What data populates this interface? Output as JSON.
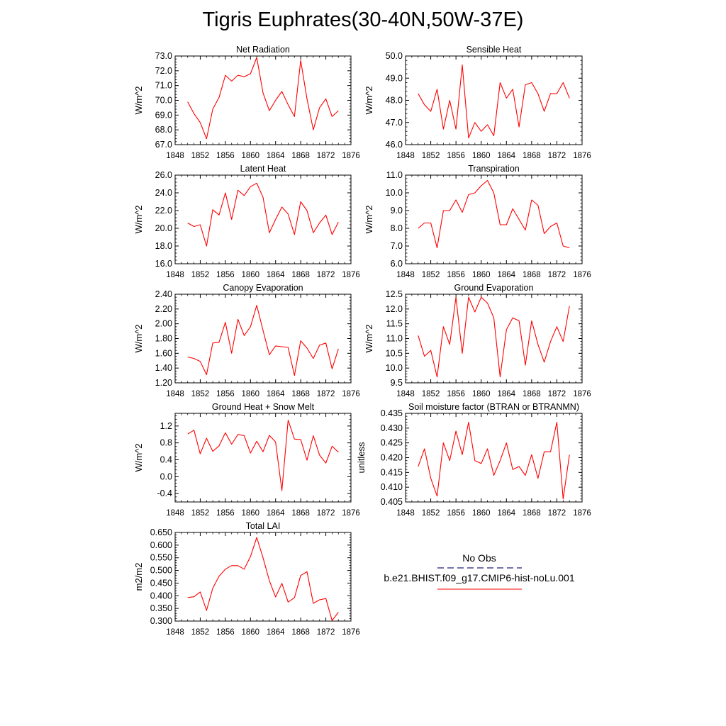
{
  "title": "Tigris Euphrates(30-40N,50W-37E)",
  "legend": {
    "entries": [
      {
        "label": "No Obs",
        "color": "#1f1f7a",
        "style": "dashed"
      },
      {
        "label": "b.e21.BHIST.f09_g17.CMIP6-hist-noLu.001",
        "color": "#ff0000",
        "style": "solid"
      }
    ]
  },
  "chart_data": [
    {
      "type": "line",
      "title": "Net Radiation",
      "ylabel": "W/m^2",
      "xlim": [
        1848,
        1876
      ],
      "ylim": [
        67.0,
        73.0
      ],
      "xticks": [
        1848,
        1852,
        1856,
        1860,
        1864,
        1868,
        1872,
        1876
      ],
      "yticks": [
        "67.0",
        "68.0",
        "69.0",
        "70.0",
        "71.0",
        "72.0",
        "73.0"
      ],
      "x": [
        1850,
        1851,
        1852,
        1853,
        1854,
        1855,
        1856,
        1857,
        1858,
        1859,
        1860,
        1861,
        1862,
        1863,
        1864,
        1865,
        1866,
        1867,
        1868,
        1869,
        1870,
        1871,
        1872,
        1873,
        1874
      ],
      "series": [
        {
          "color": "#ff0000",
          "values": [
            69.9,
            69.1,
            68.5,
            67.4,
            69.4,
            70.2,
            71.7,
            71.3,
            71.7,
            71.6,
            71.8,
            72.9,
            70.5,
            69.3,
            70.0,
            70.6,
            69.7,
            68.9,
            72.7,
            70.1,
            68.0,
            69.5,
            70.1,
            68.9,
            69.3
          ]
        }
      ]
    },
    {
      "type": "line",
      "title": "Sensible Heat",
      "ylabel": "W/m^2",
      "xlim": [
        1848,
        1876
      ],
      "ylim": [
        46.0,
        50.0
      ],
      "xticks": [
        1848,
        1852,
        1856,
        1860,
        1864,
        1868,
        1872,
        1876
      ],
      "yticks": [
        "46.0",
        "47.0",
        "48.0",
        "49.0",
        "50.0"
      ],
      "x": [
        1850,
        1851,
        1852,
        1853,
        1854,
        1855,
        1856,
        1857,
        1858,
        1859,
        1860,
        1861,
        1862,
        1863,
        1864,
        1865,
        1866,
        1867,
        1868,
        1869,
        1870,
        1871,
        1872,
        1873,
        1874
      ],
      "series": [
        {
          "color": "#ff0000",
          "values": [
            48.3,
            47.8,
            47.5,
            48.5,
            46.7,
            48.0,
            46.7,
            49.6,
            46.3,
            47.0,
            46.6,
            46.9,
            46.4,
            48.8,
            48.1,
            48.5,
            46.8,
            48.7,
            48.8,
            48.3,
            47.5,
            48.3,
            48.3,
            48.8,
            48.1
          ]
        }
      ]
    },
    {
      "type": "line",
      "title": "Latent Heat",
      "ylabel": "W/m^2",
      "xlim": [
        1848,
        1876
      ],
      "ylim": [
        16.0,
        26.0
      ],
      "xticks": [
        1848,
        1852,
        1856,
        1860,
        1864,
        1868,
        1872,
        1876
      ],
      "yticks": [
        "16.0",
        "18.0",
        "20.0",
        "22.0",
        "24.0",
        "26.0"
      ],
      "x": [
        1850,
        1851,
        1852,
        1853,
        1854,
        1855,
        1856,
        1857,
        1858,
        1859,
        1860,
        1861,
        1862,
        1863,
        1864,
        1865,
        1866,
        1867,
        1868,
        1869,
        1870,
        1871,
        1872,
        1873,
        1874
      ],
      "series": [
        {
          "color": "#ff0000",
          "values": [
            20.6,
            20.2,
            20.4,
            18.0,
            22.1,
            21.5,
            24.0,
            21.0,
            24.3,
            23.7,
            24.7,
            25.1,
            23.5,
            19.5,
            21.0,
            22.4,
            21.6,
            19.3,
            23.0,
            22.0,
            19.5,
            20.6,
            21.5,
            19.3,
            20.7
          ]
        }
      ]
    },
    {
      "type": "line",
      "title": "Transpiration",
      "ylabel": "W/m^2",
      "xlim": [
        1848,
        1876
      ],
      "ylim": [
        6.0,
        11.0
      ],
      "xticks": [
        1848,
        1852,
        1856,
        1860,
        1864,
        1868,
        1872,
        1876
      ],
      "yticks": [
        "6.0",
        "7.0",
        "8.0",
        "9.0",
        "10.0",
        "11.0"
      ],
      "x": [
        1850,
        1851,
        1852,
        1853,
        1854,
        1855,
        1856,
        1857,
        1858,
        1859,
        1860,
        1861,
        1862,
        1863,
        1864,
        1865,
        1866,
        1867,
        1868,
        1869,
        1870,
        1871,
        1872,
        1873,
        1874
      ],
      "series": [
        {
          "color": "#ff0000",
          "values": [
            8.0,
            8.3,
            8.3,
            6.9,
            9.0,
            9.0,
            9.6,
            8.9,
            9.9,
            10.0,
            10.4,
            10.7,
            10.0,
            8.2,
            8.2,
            9.1,
            8.5,
            7.9,
            9.6,
            9.3,
            7.7,
            8.1,
            8.3,
            7.0,
            6.9
          ]
        }
      ]
    },
    {
      "type": "line",
      "title": "Canopy Evaporation",
      "ylabel": "W/m^2",
      "xlim": [
        1848,
        1876
      ],
      "ylim": [
        1.2,
        2.4
      ],
      "xticks": [
        1848,
        1852,
        1856,
        1860,
        1864,
        1868,
        1872,
        1876
      ],
      "yticks": [
        "1.20",
        "1.40",
        "1.60",
        "1.80",
        "2.00",
        "2.20",
        "2.40"
      ],
      "x": [
        1850,
        1851,
        1852,
        1853,
        1854,
        1855,
        1856,
        1857,
        1858,
        1859,
        1860,
        1861,
        1862,
        1863,
        1864,
        1865,
        1866,
        1867,
        1868,
        1869,
        1870,
        1871,
        1872,
        1873,
        1874
      ],
      "series": [
        {
          "color": "#ff0000",
          "values": [
            1.55,
            1.53,
            1.49,
            1.31,
            1.74,
            1.75,
            2.02,
            1.6,
            2.06,
            1.84,
            1.96,
            2.25,
            1.91,
            1.58,
            1.7,
            1.69,
            1.68,
            1.3,
            1.77,
            1.67,
            1.53,
            1.71,
            1.74,
            1.39,
            1.66
          ]
        }
      ]
    },
    {
      "type": "line",
      "title": "Ground Evaporation",
      "ylabel": "W/m^2",
      "xlim": [
        1848,
        1876
      ],
      "ylim": [
        9.5,
        12.5
      ],
      "xticks": [
        1848,
        1852,
        1856,
        1860,
        1864,
        1868,
        1872,
        1876
      ],
      "yticks": [
        "9.5",
        "10.0",
        "10.5",
        "11.0",
        "11.5",
        "12.0",
        "12.5"
      ],
      "x": [
        1850,
        1851,
        1852,
        1853,
        1854,
        1855,
        1856,
        1857,
        1858,
        1859,
        1860,
        1861,
        1862,
        1863,
        1864,
        1865,
        1866,
        1867,
        1868,
        1869,
        1870,
        1871,
        1872,
        1873,
        1874
      ],
      "series": [
        {
          "color": "#ff0000",
          "values": [
            11.1,
            10.4,
            10.6,
            9.7,
            11.4,
            10.8,
            12.4,
            10.5,
            12.4,
            11.9,
            12.4,
            12.2,
            11.7,
            9.7,
            11.3,
            11.7,
            11.6,
            10.1,
            11.6,
            10.8,
            10.2,
            10.9,
            11.4,
            10.9,
            12.1
          ]
        }
      ]
    },
    {
      "type": "line",
      "title": "Ground Heat + Snow Melt",
      "ylabel": "W/m^2",
      "xlim": [
        1848,
        1876
      ],
      "ylim": [
        -0.6,
        1.5
      ],
      "xticks": [
        1848,
        1852,
        1856,
        1860,
        1864,
        1868,
        1872,
        1876
      ],
      "yticks": [
        "-0.4",
        "0.0",
        "0.4",
        "0.8",
        "1.2"
      ],
      "x": [
        1850,
        1851,
        1852,
        1853,
        1854,
        1855,
        1856,
        1857,
        1858,
        1859,
        1860,
        1861,
        1862,
        1863,
        1864,
        1865,
        1866,
        1867,
        1868,
        1869,
        1870,
        1871,
        1872,
        1873,
        1874
      ],
      "series": [
        {
          "color": "#ff0000",
          "values": [
            1.01,
            1.1,
            0.54,
            0.91,
            0.6,
            0.73,
            1.04,
            0.77,
            1.0,
            0.97,
            0.56,
            0.84,
            0.59,
            0.98,
            0.82,
            -0.33,
            1.34,
            0.89,
            0.88,
            0.39,
            0.97,
            0.51,
            0.32,
            0.72,
            0.58
          ]
        }
      ]
    },
    {
      "type": "line",
      "title": "Soil moisture factor (BTRAN or BTRANMN)",
      "ylabel": "unitless",
      "xlim": [
        1848,
        1876
      ],
      "ylim": [
        0.405,
        0.435
      ],
      "xticks": [
        1848,
        1852,
        1856,
        1860,
        1864,
        1868,
        1872,
        1876
      ],
      "yticks": [
        "0.405",
        "0.410",
        "0.415",
        "0.420",
        "0.425",
        "0.430",
        "0.435"
      ],
      "x": [
        1850,
        1851,
        1852,
        1853,
        1854,
        1855,
        1856,
        1857,
        1858,
        1859,
        1860,
        1861,
        1862,
        1863,
        1864,
        1865,
        1866,
        1867,
        1868,
        1869,
        1870,
        1871,
        1872,
        1873,
        1874
      ],
      "series": [
        {
          "color": "#ff0000",
          "values": [
            0.417,
            0.423,
            0.413,
            0.407,
            0.425,
            0.419,
            0.429,
            0.421,
            0.432,
            0.419,
            0.418,
            0.423,
            0.414,
            0.419,
            0.425,
            0.416,
            0.417,
            0.414,
            0.421,
            0.413,
            0.422,
            0.422,
            0.432,
            0.406,
            0.421
          ]
        }
      ]
    },
    {
      "type": "line",
      "title": "Total LAI",
      "ylabel": "m2/m2",
      "xlim": [
        1848,
        1876
      ],
      "ylim": [
        0.3,
        0.65
      ],
      "xticks": [
        1848,
        1852,
        1856,
        1860,
        1864,
        1868,
        1872,
        1876
      ],
      "yticks": [
        "0.300",
        "0.350",
        "0.400",
        "0.450",
        "0.500",
        "0.550",
        "0.600",
        "0.650"
      ],
      "x": [
        1850,
        1851,
        1852,
        1853,
        1854,
        1855,
        1856,
        1857,
        1858,
        1859,
        1860,
        1861,
        1862,
        1863,
        1864,
        1865,
        1866,
        1867,
        1868,
        1869,
        1870,
        1871,
        1872,
        1873,
        1874
      ],
      "series": [
        {
          "color": "#ff0000",
          "values": [
            0.393,
            0.396,
            0.415,
            0.342,
            0.43,
            0.477,
            0.505,
            0.519,
            0.519,
            0.505,
            0.555,
            0.63,
            0.55,
            0.46,
            0.395,
            0.449,
            0.375,
            0.392,
            0.48,
            0.495,
            0.37,
            0.384,
            0.389,
            0.302,
            0.335
          ]
        }
      ]
    }
  ]
}
